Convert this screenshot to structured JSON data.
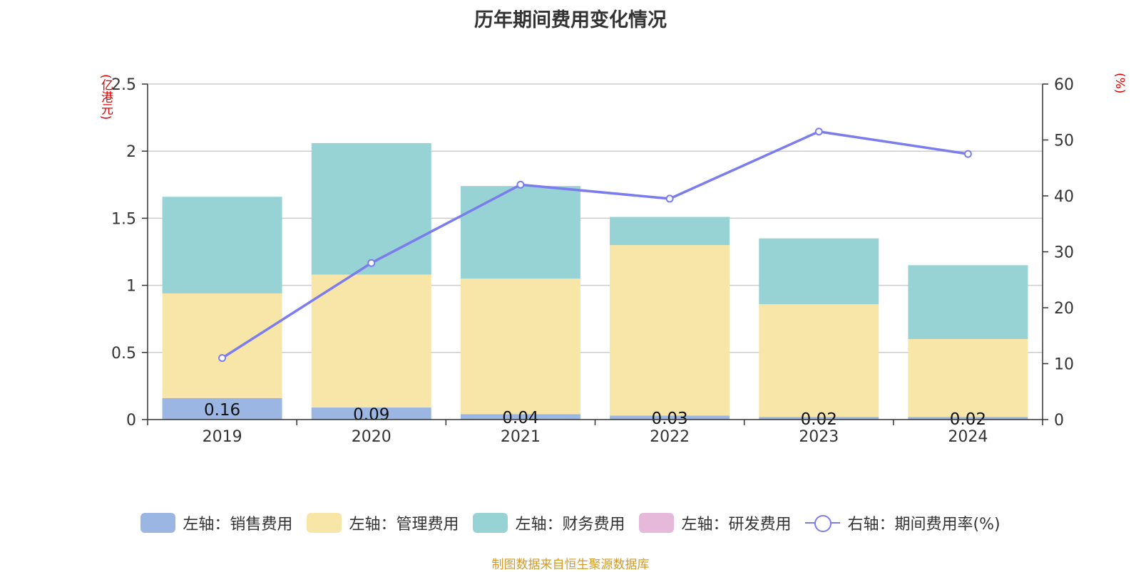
{
  "title": "历年期间费用变化情况",
  "left_unit": "(亿港元)",
  "right_unit": "(%)",
  "source": "制图数据来自恒生聚源数据库",
  "chart_data": {
    "type": "bar",
    "stacked": true,
    "categories": [
      "2019",
      "2020",
      "2021",
      "2022",
      "2023",
      "2024"
    ],
    "series": [
      {
        "name": "左轴：销售费用",
        "axis": "left",
        "color": "#9bb6e3",
        "values": [
          0.16,
          0.09,
          0.04,
          0.03,
          0.02,
          0.02
        ],
        "labels": [
          "0.16",
          "0.09",
          "0.04",
          "0.03",
          "0.02",
          "0.02"
        ]
      },
      {
        "name": "左轴：管理费用",
        "axis": "left",
        "color": "#f8e6a9",
        "values": [
          0.78,
          0.99,
          1.01,
          1.27,
          0.84,
          0.58
        ]
      },
      {
        "name": "左轴：财务费用",
        "axis": "left",
        "color": "#97d3d4",
        "values": [
          0.72,
          0.98,
          0.69,
          0.21,
          0.49,
          0.55
        ]
      },
      {
        "name": "左轴：研发费用",
        "axis": "left",
        "color": "#e6b8da",
        "values": [
          0,
          0,
          0,
          0,
          0,
          0
        ]
      },
      {
        "name": "右轴：期间费用率(%)",
        "axis": "right",
        "type": "line",
        "color": "#7b7cee",
        "values": [
          11,
          28,
          42,
          39.5,
          51.5,
          47.5
        ]
      }
    ],
    "left_axis": {
      "ylim": [
        0,
        2.5
      ],
      "ticks": [
        "0",
        "0.5",
        "1",
        "1.5",
        "2",
        "2.5"
      ],
      "tick_values": [
        0,
        0.5,
        1,
        1.5,
        2,
        2.5
      ]
    },
    "right_axis": {
      "ylim": [
        0,
        60
      ],
      "ticks": [
        "0",
        "10",
        "20",
        "30",
        "40",
        "50",
        "60"
      ],
      "tick_values": [
        0,
        10,
        20,
        30,
        40,
        50,
        60
      ]
    },
    "grid": true,
    "legend_position": "bottom"
  }
}
